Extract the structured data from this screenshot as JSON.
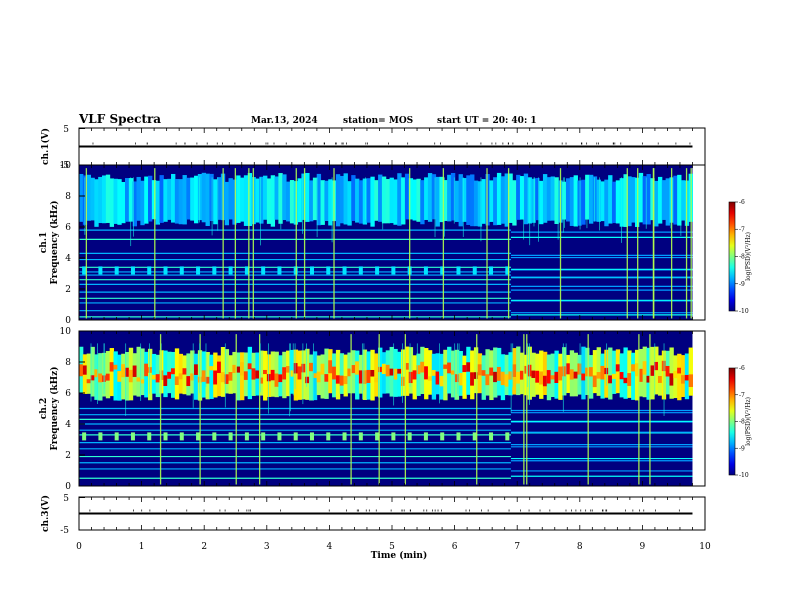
{
  "header": {
    "title": "VLF Spectra",
    "date": "Mar.13, 2024",
    "station": "station= MOS",
    "start": "start  UT  =   20: 40: 1"
  },
  "colors": {
    "background": "#000080",
    "trace": "#000000"
  },
  "chart_data": [
    {
      "type": "line",
      "id": "ch1-waveform",
      "ylabel": "ch.1(V)",
      "yticks": [
        "5",
        "-5"
      ],
      "ylim": [
        -5,
        5
      ],
      "xlim": [
        0,
        10
      ],
      "x": [
        0,
        9.8
      ],
      "y": [
        0,
        0
      ]
    },
    {
      "type": "heatmap",
      "id": "ch1-spectrogram",
      "ylabel_line1": "ch.1",
      "ylabel_line2": "Frequency (kHz)",
      "yticks": [
        "0",
        "2",
        "4",
        "6",
        "8",
        "10"
      ],
      "ylim": [
        0,
        10
      ],
      "xlim": [
        0,
        10
      ],
      "data_extent_min": 9.8,
      "colorbar": {
        "label": "log(PSD)(V²/Hz)",
        "ticks": [
          "-6",
          "-7",
          "-8",
          "-9",
          "-10"
        ],
        "range": [
          -10,
          -6
        ]
      },
      "bright_band_khz": [
        6.0,
        9.5
      ],
      "tone_lines_khz": [
        0.2,
        0.6,
        1.1,
        1.4,
        1.8,
        2.3,
        2.6,
        2.9,
        3.1,
        3.4,
        3.9,
        4.3,
        5.2,
        5.8
      ],
      "regime_change_min": 6.9
    },
    {
      "type": "heatmap",
      "id": "ch2-spectrogram",
      "ylabel_line1": "ch.2",
      "ylabel_line2": "Frequency (kHz)",
      "yticks": [
        "0",
        "2",
        "4",
        "6",
        "8",
        "10"
      ],
      "ylim": [
        0,
        10
      ],
      "xlim": [
        0,
        10
      ],
      "data_extent_min": 9.8,
      "colorbar": {
        "label": "log(PSD)(V²/Hz)",
        "ticks": [
          "-6",
          "-7",
          "-8",
          "-9",
          "-10"
        ],
        "range": [
          -10,
          -6
        ]
      },
      "bright_band_khz": [
        5.5,
        9.0
      ],
      "tone_lines_khz": [
        0.5,
        1.1,
        1.5,
        1.9,
        2.4,
        2.8,
        3.3,
        3.6,
        4.0,
        4.3,
        4.6,
        5.0
      ],
      "regime_change_min": 6.9
    },
    {
      "type": "line",
      "id": "ch3-waveform",
      "ylabel": "ch.3(V)",
      "yticks": [
        "5",
        "-5"
      ],
      "ylim": [
        -5,
        5
      ],
      "xlim": [
        0,
        10
      ],
      "x": [
        0,
        9.8
      ],
      "y": [
        0,
        0
      ]
    }
  ],
  "xaxis": {
    "label": "Time (min)",
    "ticks": [
      "0",
      "1",
      "2",
      "3",
      "4",
      "5",
      "6",
      "7",
      "8",
      "9",
      "10"
    ]
  }
}
